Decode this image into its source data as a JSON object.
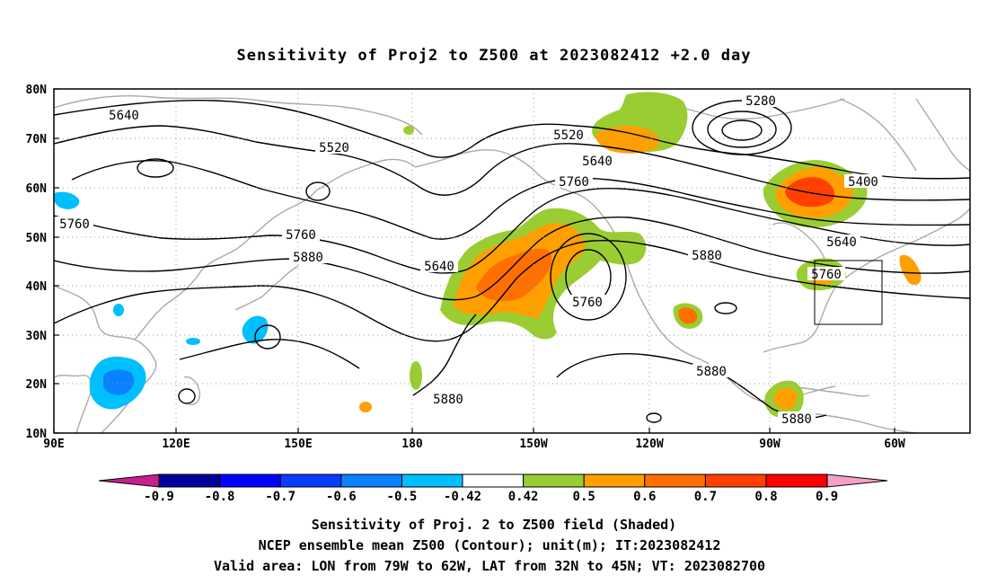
{
  "title": "Sensitivity of Proj2 to Z500 at 2023082412 +2.0 day",
  "lat_ticks": [
    "80N",
    "70N",
    "60N",
    "50N",
    "40N",
    "30N",
    "20N",
    "10N"
  ],
  "lon_ticks": [
    "90E",
    "120E",
    "150E",
    "180",
    "150W",
    "120W",
    "90W",
    "60W"
  ],
  "contour_labels": {
    "c1": "5640",
    "c2": "5520",
    "c3": "5760",
    "c4": "5760",
    "c5": "5880",
    "c6": "5640",
    "c7": "5520",
    "c8": "5280",
    "c9": "5640",
    "c10": "5760",
    "c11": "5760",
    "c12": "5880",
    "c13": "5400",
    "c14": "5640",
    "c15": "5760",
    "c16": "5880",
    "c17": "5880",
    "c18": "5880"
  },
  "colorbar": {
    "labels": [
      "-0.9",
      "-0.8",
      "-0.7",
      "-0.6",
      "-0.5",
      "-0.42",
      "0.42",
      "0.5",
      "0.6",
      "0.7",
      "0.8",
      "0.9"
    ],
    "colors": [
      "#00009c",
      "#0000ff",
      "#0a3cff",
      "#0a82ff",
      "#00bfff",
      "#ffffff",
      "#9acd32",
      "#ffa000",
      "#ff7000",
      "#ff4000",
      "#ff0000"
    ],
    "low_end_color": "#c81f8c",
    "high_end_color": "#f5a0c8"
  },
  "captions": {
    "line1": "Sensitivity of Proj. 2 to Z500 field (Shaded)",
    "line2": "NCEP ensemble mean Z500 (Contour); unit(m); IT:2023082412",
    "line3": "Valid area: LON from 79W to 62W, LAT from 32N to 45N; VT: 2023082700"
  },
  "colors": {
    "coast": "#aaaaaa",
    "contour": "#000000",
    "grid": "#999999"
  }
}
